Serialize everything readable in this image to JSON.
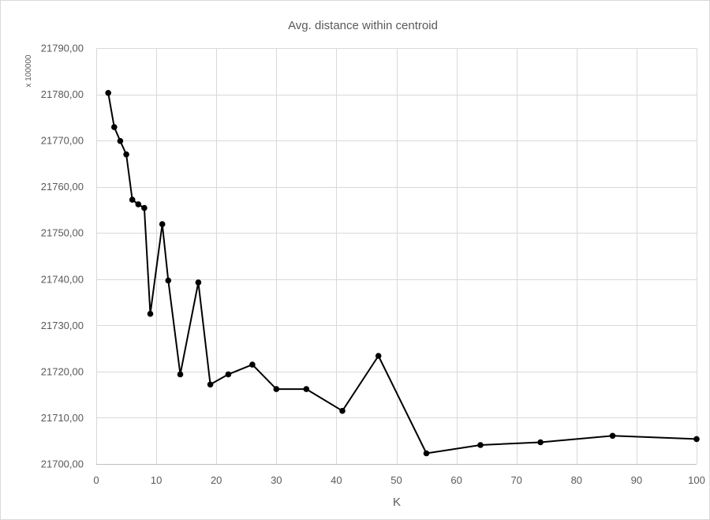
{
  "chart_data": {
    "type": "line",
    "title": "Avg. distance within centroid",
    "xlabel": "K",
    "ylabel": "",
    "y_display_unit": "x 100000",
    "xlim": [
      0,
      100
    ],
    "ylim": [
      21700,
      21790
    ],
    "x_ticks": [
      0,
      10,
      20,
      30,
      40,
      50,
      60,
      70,
      80,
      90,
      100
    ],
    "y_ticks": [
      21700,
      21710,
      21720,
      21730,
      21740,
      21750,
      21760,
      21770,
      21780,
      21790
    ],
    "y_tick_labels": [
      "21700,00",
      "21710,00",
      "21720,00",
      "21730,00",
      "21740,00",
      "21750,00",
      "21760,00",
      "21770,00",
      "21780,00",
      "21790,00"
    ],
    "grid": true,
    "legend": "none",
    "colors": {
      "line": "#000000",
      "marker": "#000000",
      "grid": "#d9d9d9",
      "text": "#595959"
    },
    "series": [
      {
        "x": [
          2,
          3,
          4,
          5,
          6,
          7,
          8,
          9,
          11,
          12,
          14,
          17,
          19,
          22,
          26,
          30,
          35,
          41,
          47,
          55,
          64,
          74,
          86,
          100
        ],
        "values": [
          21780.3,
          21772.9,
          21769.9,
          21767.0,
          21757.2,
          21756.2,
          21755.4,
          21732.5,
          21751.9,
          21739.7,
          21719.4,
          21739.3,
          21717.2,
          21719.4,
          21721.5,
          21716.2,
          21716.2,
          21711.5,
          21723.4,
          21702.3,
          21704.1,
          21704.7,
          21706.1,
          21705.4
        ]
      }
    ]
  }
}
